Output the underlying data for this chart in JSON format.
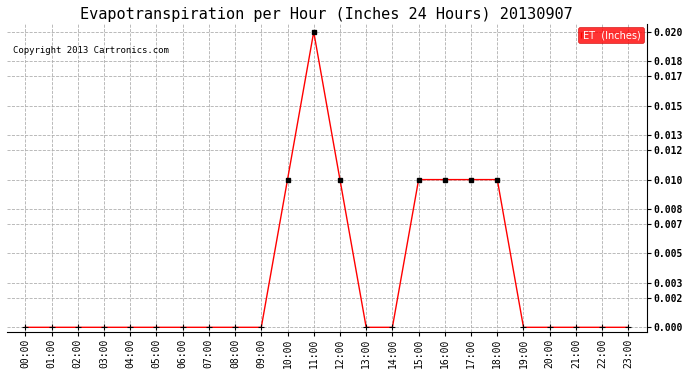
{
  "title": "Evapotranspiration per Hour (Inches 24 Hours) 20130907",
  "copyright": "Copyright 2013 Cartronics.com",
  "legend_label": "ET  (Inches)",
  "legend_bg": "#ff0000",
  "legend_fg": "#ffffff",
  "hours": [
    "00:00",
    "01:00",
    "02:00",
    "03:00",
    "04:00",
    "05:00",
    "06:00",
    "07:00",
    "08:00",
    "09:00",
    "10:00",
    "11:00",
    "12:00",
    "13:00",
    "14:00",
    "15:00",
    "16:00",
    "17:00",
    "18:00",
    "19:00",
    "20:00",
    "21:00",
    "22:00",
    "23:00"
  ],
  "et_values": [
    0.0,
    0.0,
    0.0,
    0.0,
    0.0,
    0.0,
    0.0,
    0.0,
    0.0,
    0.0,
    0.01,
    0.02,
    0.01,
    0.0,
    0.0,
    0.01,
    0.01,
    0.01,
    0.01,
    0.0,
    0.0,
    0.0,
    0.0,
    0.0
  ],
  "line_color": "#ff0000",
  "marker_color": "#000000",
  "ylim": [
    -0.0003,
    0.0205
  ],
  "yticks": [
    0.0,
    0.002,
    0.003,
    0.005,
    0.007,
    0.008,
    0.01,
    0.012,
    0.013,
    0.015,
    0.017,
    0.018,
    0.02
  ],
  "bg_color": "#ffffff",
  "grid_color": "#b0b0b0",
  "title_fontsize": 11,
  "copyright_fontsize": 6.5,
  "tick_fontsize": 7,
  "legend_fontsize": 7
}
